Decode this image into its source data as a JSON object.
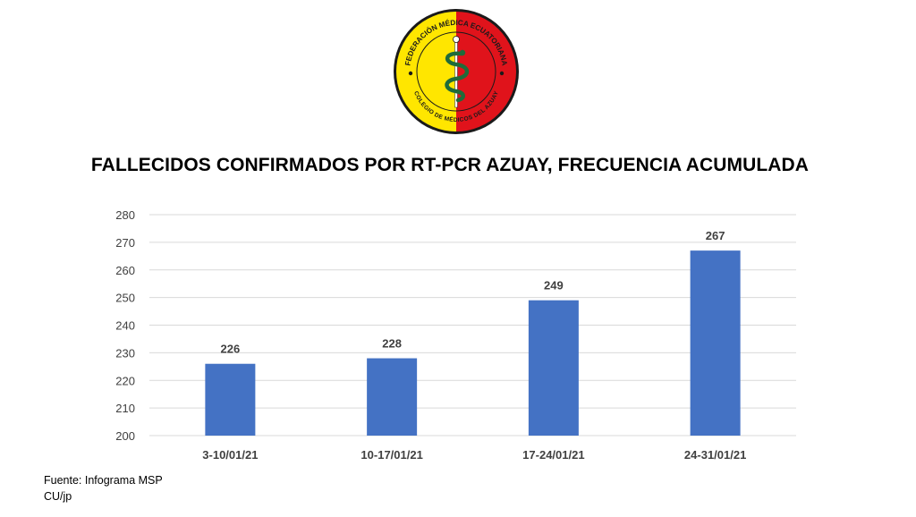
{
  "logo": {
    "top_text": "FEDERACIÓN MÉDICA ECUATORIANA",
    "bottom_text": "COLEGIO DE MÉDICOS DEL AZUAY",
    "colors": {
      "left": "#ffe600",
      "right": "#e0131b",
      "ring": "#1a1a1a",
      "symbol": "#1f6b3a"
    }
  },
  "chart_data": {
    "type": "bar",
    "title": "FALLECIDOS CONFIRMADOS POR RT-PCR AZUAY, FRECUENCIA ACUMULADA",
    "categories": [
      "3-10/01/21",
      "10-17/01/21",
      "17-24/01/21",
      "24-31/01/21"
    ],
    "values": [
      226,
      228,
      249,
      267
    ],
    "ylim": [
      200,
      280
    ],
    "yticks": [
      200,
      210,
      220,
      230,
      240,
      250,
      260,
      270,
      280
    ],
    "grid": true,
    "bar_color": "#4472c4",
    "data_labels": true
  },
  "footer": {
    "source": "Fuente: Infograma MSP",
    "credit": "CU/jp"
  }
}
